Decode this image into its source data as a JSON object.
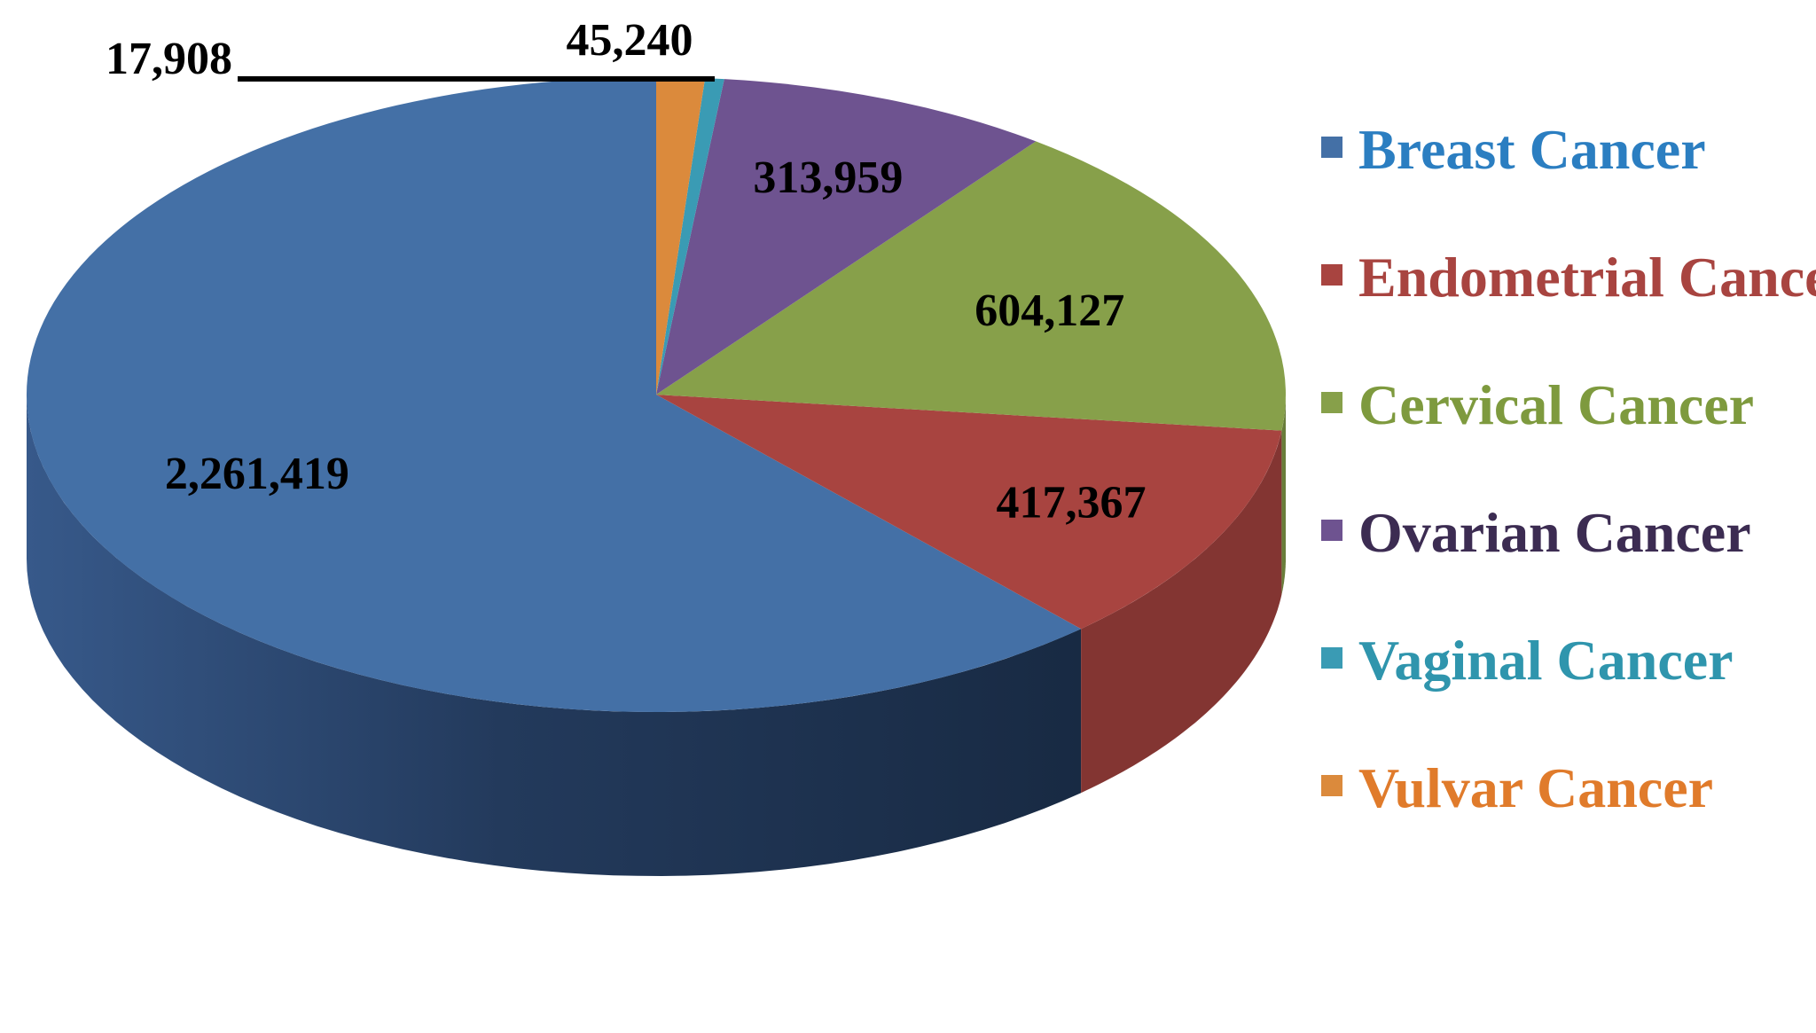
{
  "chart_data": {
    "type": "pie",
    "title": "",
    "legend_position": "right",
    "categories": [
      "Breast Cancer",
      "Endometrial Cancer",
      "Cervical Cancer",
      "Ovarian Cancer",
      "Vaginal Cancer",
      "Vulvar Cancer"
    ],
    "values": [
      2261419,
      417367,
      604127,
      313959,
      17908,
      45240
    ],
    "data_labels": [
      "2,261,419",
      "417,367",
      "604,127",
      "313,959",
      "17,908",
      "45,240"
    ],
    "colors": [
      "#4470A6",
      "#A84440",
      "#87A04A",
      "#6E5390",
      "#3A9BB4",
      "#DB8A3C"
    ],
    "legend_text_colors": [
      "#2B7EC1",
      "#A84440",
      "#7E9A3E",
      "#3C2C52",
      "#2F95AD",
      "#E07B2B"
    ]
  }
}
